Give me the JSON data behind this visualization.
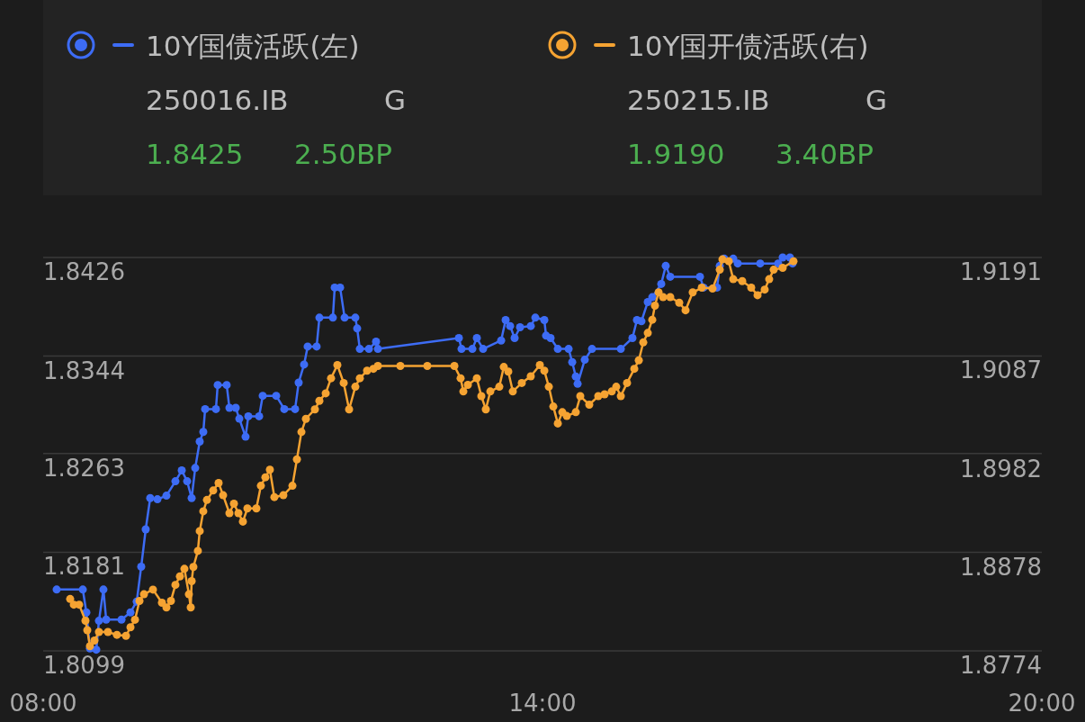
{
  "chart_data": {
    "type": "line",
    "xlim": [
      8,
      20
    ],
    "xticks": [
      {
        "value": 8,
        "label": "08:00"
      },
      {
        "value": 14,
        "label": "14:00"
      },
      {
        "value": 20,
        "label": "20:00"
      }
    ],
    "ylim": [
      1.8099,
      1.8426
    ],
    "yticks": [
      1.8099,
      1.8181,
      1.8263,
      1.8344,
      1.8426
    ],
    "y2lim": [
      1.8774,
      1.9191
    ],
    "y2ticks": [
      1.8774,
      1.8878,
      1.8982,
      1.9087,
      1.9191
    ],
    "grid": "y",
    "legend": "top",
    "marker": "circle",
    "annotations": [
      "250016.IB",
      "G",
      "1.8425",
      "2.50BP",
      "250215.IB",
      "G",
      "1.9190",
      "3.40BP"
    ],
    "series": [
      {
        "name": "10Y国债活跃(左)",
        "color": "#3d6cf5",
        "axis": "y",
        "x": [
          8.162,
          8.476,
          8.519,
          8.562,
          8.638,
          8.67,
          8.724,
          8.757,
          8.941,
          9.049,
          9.124,
          9.178,
          9.232,
          9.286,
          9.373,
          9.481,
          9.589,
          9.665,
          9.73,
          9.784,
          9.827,
          9.881,
          9.924,
          9.946,
          10.076,
          10.097,
          10.205,
          10.238,
          10.314,
          10.357,
          10.432,
          10.465,
          10.595,
          10.638,
          10.8,
          10.897,
          11.027,
          11.07,
          11.135,
          11.178,
          11.286,
          11.319,
          11.481,
          11.503,
          11.568,
          11.622,
          11.751,
          11.773,
          11.805,
          11.914,
          12.0,
          12.022,
          12.995,
          13.027,
          13.157,
          13.211,
          13.286,
          13.503,
          13.557,
          13.611,
          13.665,
          13.73,
          13.859,
          13.914,
          14.022,
          14.043,
          14.097,
          14.184,
          14.314,
          14.357,
          14.4,
          14.422,
          14.508,
          14.595,
          14.941,
          15.081,
          15.135,
          15.189,
          15.265,
          15.319,
          15.427,
          15.481,
          15.535,
          15.892,
          15.935,
          16.097,
          16.13,
          16.184,
          16.292,
          16.346,
          16.616,
          16.832,
          16.886,
          16.973,
          17.005
        ],
        "values": [
          1.815,
          1.815,
          1.8131,
          1.8101,
          1.81,
          1.8124,
          1.815,
          1.8125,
          1.8125,
          1.8131,
          1.814,
          1.8169,
          1.82,
          1.8226,
          1.8225,
          1.8228,
          1.824,
          1.8249,
          1.824,
          1.8226,
          1.8251,
          1.8273,
          1.8281,
          1.83,
          1.83,
          1.832,
          1.832,
          1.8301,
          1.8301,
          1.8292,
          1.8277,
          1.8294,
          1.8294,
          1.8311,
          1.8311,
          1.83,
          1.83,
          1.8322,
          1.8337,
          1.8352,
          1.8352,
          1.8376,
          1.8376,
          1.8401,
          1.8401,
          1.8376,
          1.8376,
          1.8367,
          1.835,
          1.835,
          1.8356,
          1.835,
          1.8359,
          1.835,
          1.835,
          1.8359,
          1.835,
          1.8357,
          1.8374,
          1.8369,
          1.8359,
          1.8368,
          1.8369,
          1.8376,
          1.8374,
          1.8361,
          1.8359,
          1.835,
          1.835,
          1.8339,
          1.8327,
          1.8321,
          1.8341,
          1.835,
          1.835,
          1.8359,
          1.8374,
          1.8373,
          1.8389,
          1.8393,
          1.8404,
          1.8419,
          1.841,
          1.841,
          1.8401,
          1.8401,
          1.8419,
          1.8425,
          1.8425,
          1.8421,
          1.8421,
          1.8421,
          1.8426,
          1.8426,
          1.8421
        ]
      },
      {
        "name": "10Y国开债活跃(右)",
        "color": "#f5a332",
        "axis": "y2",
        "x": [
          8.324,
          8.368,
          8.432,
          8.508,
          8.53,
          8.562,
          8.616,
          8.67,
          8.778,
          8.886,
          8.995,
          9.049,
          9.103,
          9.157,
          9.211,
          9.319,
          9.427,
          9.481,
          9.535,
          9.589,
          9.643,
          9.697,
          9.751,
          9.773,
          9.784,
          9.805,
          9.859,
          9.881,
          9.924,
          9.968,
          10.043,
          10.108,
          10.162,
          10.238,
          10.292,
          10.346,
          10.4,
          10.454,
          10.562,
          10.616,
          10.67,
          10.724,
          10.778,
          10.886,
          10.995,
          11.049,
          11.103,
          11.157,
          11.265,
          11.319,
          11.395,
          11.459,
          11.535,
          11.611,
          11.676,
          11.751,
          11.805,
          11.892,
          11.968,
          12.022,
          12.292,
          12.616,
          12.941,
          13.016,
          13.049,
          13.103,
          13.211,
          13.265,
          13.319,
          13.373,
          13.481,
          13.535,
          13.589,
          13.643,
          13.751,
          13.859,
          13.968,
          14.022,
          14.076,
          14.13,
          14.184,
          14.238,
          14.292,
          14.4,
          14.454,
          14.562,
          14.67,
          14.746,
          14.832,
          14.886,
          14.941,
          15.016,
          15.103,
          15.157,
          15.211,
          15.265,
          15.319,
          15.351,
          15.395,
          15.449,
          15.535,
          15.643,
          15.719,
          15.805,
          15.914,
          16.043,
          16.13,
          16.162,
          16.238,
          16.292,
          16.4,
          16.508,
          16.584,
          16.67,
          16.724,
          16.778,
          16.886,
          17.016
        ],
        "values": [
          1.8829,
          1.8823,
          1.8823,
          1.8806,
          1.8796,
          1.8779,
          1.8785,
          1.8794,
          1.8794,
          1.8791,
          1.879,
          1.8799,
          1.8807,
          1.8827,
          1.8834,
          1.8839,
          1.8825,
          1.882,
          1.8827,
          1.8844,
          1.8853,
          1.8861,
          1.8834,
          1.882,
          1.8848,
          1.8863,
          1.888,
          1.8901,
          1.8922,
          1.8934,
          1.8944,
          1.8952,
          1.8939,
          1.892,
          1.893,
          1.892,
          1.8911,
          1.8925,
          1.8925,
          1.8949,
          1.8958,
          1.8966,
          1.8937,
          1.8939,
          1.8949,
          1.8977,
          1.9006,
          1.902,
          1.903,
          1.9039,
          1.9047,
          1.9063,
          1.9077,
          1.9058,
          1.903,
          1.9054,
          1.9063,
          1.9071,
          1.9073,
          1.9076,
          1.9076,
          1.9076,
          1.9076,
          1.9063,
          1.9049,
          1.9056,
          1.9063,
          1.9044,
          1.903,
          1.9049,
          1.9054,
          1.9075,
          1.907,
          1.9049,
          1.9058,
          1.9065,
          1.9077,
          1.9071,
          1.9054,
          1.9033,
          1.9015,
          1.9027,
          1.9023,
          1.9027,
          1.9044,
          1.9035,
          1.9044,
          1.9046,
          1.9049,
          1.9054,
          1.9044,
          1.9058,
          1.9073,
          1.9082,
          1.9101,
          1.9111,
          1.9125,
          1.914,
          1.9154,
          1.9149,
          1.9149,
          1.9143,
          1.9135,
          1.9154,
          1.9159,
          1.9158,
          1.9178,
          1.9189,
          1.9187,
          1.9168,
          1.9166,
          1.9159,
          1.9151,
          1.9157,
          1.9168,
          1.9178,
          1.918,
          1.9187
        ]
      }
    ]
  }
}
